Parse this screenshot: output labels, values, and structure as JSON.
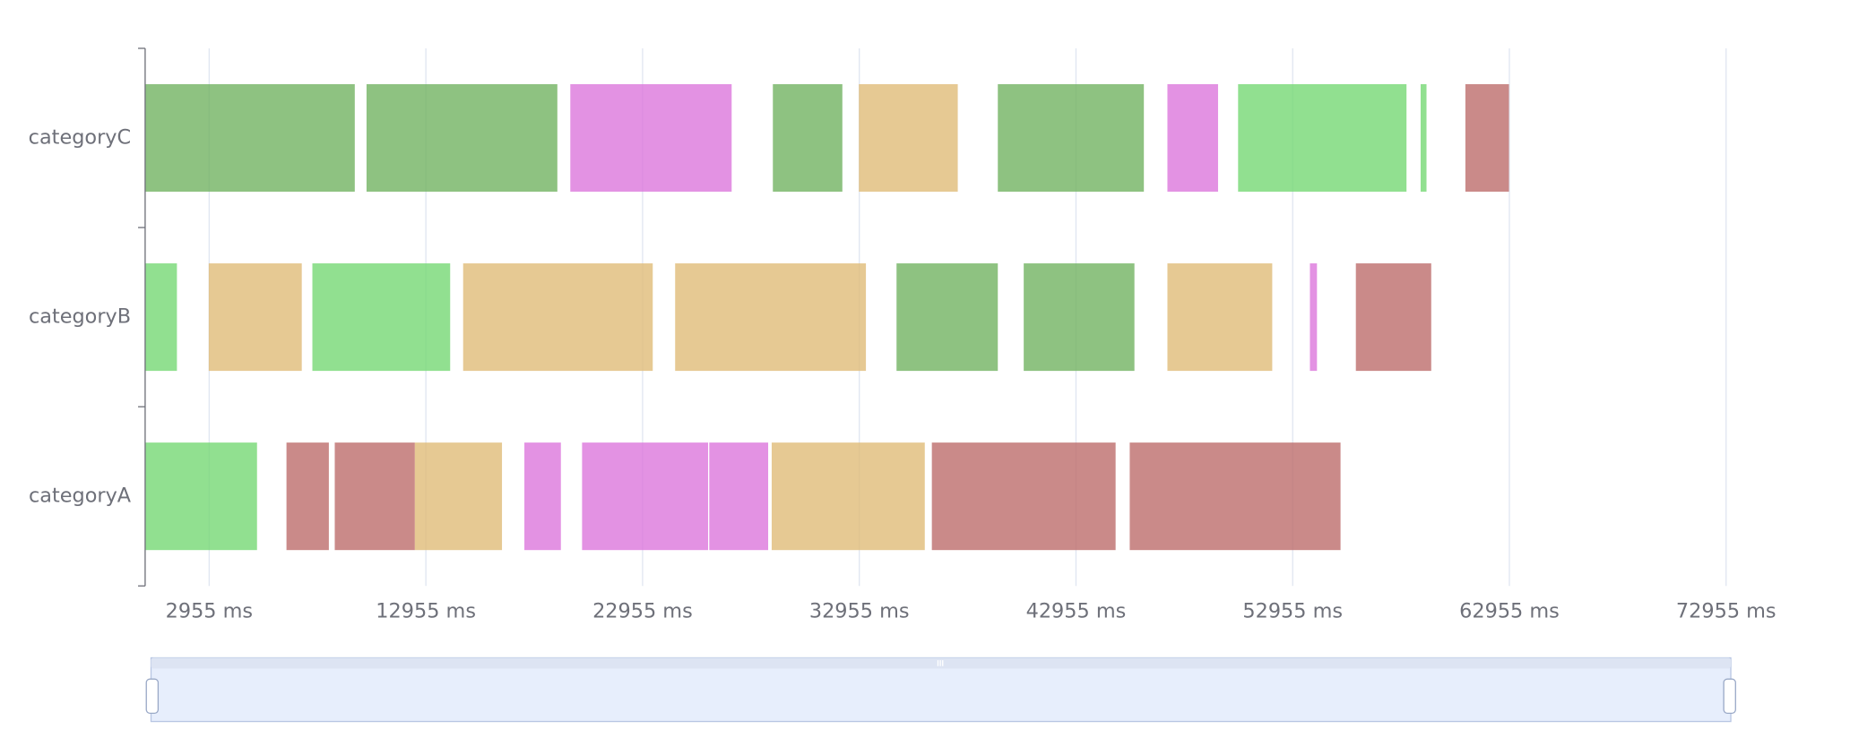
{
  "chart_data": {
    "type": "gantt",
    "categories": [
      "categoryA",
      "categoryB",
      "categoryC"
    ],
    "xlim": [
      0,
      72955
    ],
    "xticks": [
      {
        "value": 2955,
        "label": "2955 ms"
      },
      {
        "value": 12955,
        "label": "12955 ms"
      },
      {
        "value": 22955,
        "label": "22955 ms"
      },
      {
        "value": 32955,
        "label": "32955 ms"
      },
      {
        "value": 42955,
        "label": "42955 ms"
      },
      {
        "value": 52955,
        "label": "52955 ms"
      },
      {
        "value": 62955,
        "label": "62955 ms"
      },
      {
        "value": 72955,
        "label": "72955 ms"
      }
    ],
    "grid": true,
    "bars": [
      {
        "category": 2,
        "start": 0,
        "end": 9674,
        "color": "#72b362"
      },
      {
        "category": 2,
        "start": 10217,
        "end": 19022,
        "color": "#72b362"
      },
      {
        "category": 2,
        "start": 19620,
        "end": 27065,
        "color": "#dc77dc"
      },
      {
        "category": 2,
        "start": 28967,
        "end": 32174,
        "color": "#72b362"
      },
      {
        "category": 2,
        "start": 32935,
        "end": 37500,
        "color": "#e0bc78"
      },
      {
        "category": 2,
        "start": 39348,
        "end": 46087,
        "color": "#72b362"
      },
      {
        "category": 2,
        "start": 47174,
        "end": 49511,
        "color": "#dc77dc"
      },
      {
        "category": 2,
        "start": 50435,
        "end": 58207,
        "color": "#75d874"
      },
      {
        "category": 2,
        "start": 58859,
        "end": 59130,
        "color": "#75d874"
      },
      {
        "category": 2,
        "start": 60924,
        "end": 62935,
        "color": "#bd6d6c"
      },
      {
        "category": 1,
        "start": 0,
        "end": 1467,
        "color": "#75d874"
      },
      {
        "category": 1,
        "start": 2935,
        "end": 7228,
        "color": "#e0bc78"
      },
      {
        "category": 1,
        "start": 7717,
        "end": 14076,
        "color": "#75d874"
      },
      {
        "category": 1,
        "start": 14674,
        "end": 23424,
        "color": "#e0bc78"
      },
      {
        "category": 1,
        "start": 24457,
        "end": 33261,
        "color": "#e0bc78"
      },
      {
        "category": 1,
        "start": 34674,
        "end": 39348,
        "color": "#72b362"
      },
      {
        "category": 1,
        "start": 40543,
        "end": 45652,
        "color": "#72b362"
      },
      {
        "category": 1,
        "start": 47174,
        "end": 52011,
        "color": "#e0bc78"
      },
      {
        "category": 1,
        "start": 53750,
        "end": 54076,
        "color": "#dc77dc"
      },
      {
        "category": 1,
        "start": 55870,
        "end": 59348,
        "color": "#bd6d6c"
      },
      {
        "category": 0,
        "start": 0,
        "end": 5163,
        "color": "#75d874"
      },
      {
        "category": 0,
        "start": 6522,
        "end": 8478,
        "color": "#bd6d6c"
      },
      {
        "category": 0,
        "start": 8750,
        "end": 12446,
        "color": "#bd6d6c"
      },
      {
        "category": 0,
        "start": 12446,
        "end": 16467,
        "color": "#e0bc78"
      },
      {
        "category": 0,
        "start": 17500,
        "end": 19185,
        "color": "#dc77dc"
      },
      {
        "category": 0,
        "start": 20163,
        "end": 25978,
        "color": "#dc77dc"
      },
      {
        "category": 0,
        "start": 26033,
        "end": 28750,
        "color": "#dc77dc"
      },
      {
        "category": 0,
        "start": 28913,
        "end": 35978,
        "color": "#e0bc78"
      },
      {
        "category": 0,
        "start": 36304,
        "end": 44783,
        "color": "#bd6d6c"
      },
      {
        "category": 0,
        "start": 45435,
        "end": 55163,
        "color": "#bd6d6c"
      }
    ]
  }
}
